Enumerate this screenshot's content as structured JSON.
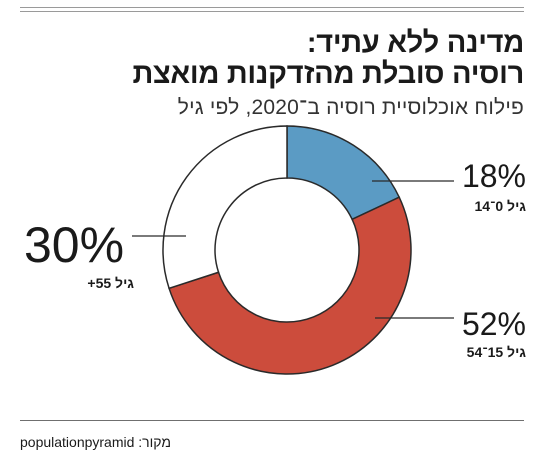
{
  "title_line1": "מדינה ללא עתיד:",
  "title_line2": "רוסיה סובלת מהזדקנות מואצת",
  "subtitle": "פילוח אוכלוסיית רוסיה ב־2020, לפי גיל",
  "source": "מקור: populationpyramid",
  "colors": {
    "young": "#5b9bc4",
    "working": "#cc4c3c",
    "elderly": "#ffffff",
    "outline": "#2a2a2a"
  },
  "chart_data": {
    "type": "pie",
    "title": "פילוח אוכלוסיית רוסיה ב־2020, לפי גיל",
    "categories": [
      "גיל 0־14",
      "גיל 15־54",
      "גיל 55+"
    ],
    "values": [
      18,
      52,
      30
    ],
    "value_labels": [
      "18%",
      "52%",
      "30%"
    ],
    "style": "donut"
  }
}
